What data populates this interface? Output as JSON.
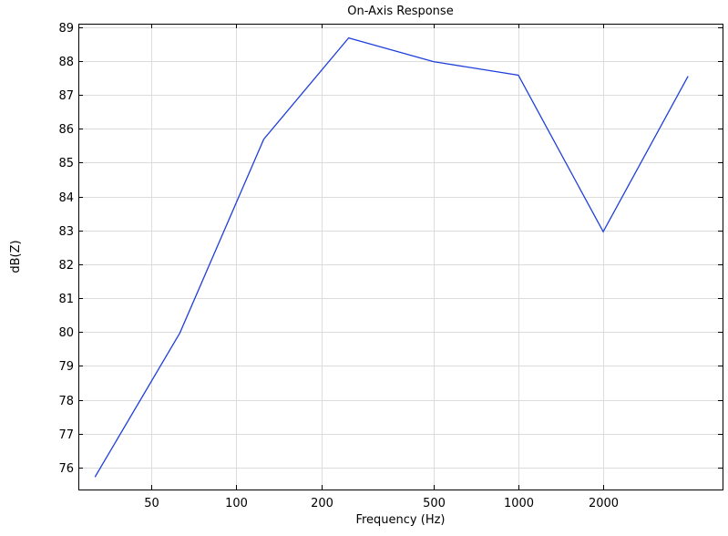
{
  "chart_data": {
    "type": "line",
    "title": "On-Axis Response",
    "xlabel": "Frequency (Hz)",
    "ylabel": "dB(Z)",
    "x_scale": "log",
    "xlim": [
      27.5,
      5300
    ],
    "ylim": [
      75.35,
      89.1
    ],
    "x_ticks": [
      50,
      100,
      200,
      500,
      1000,
      2000
    ],
    "y_ticks": [
      76,
      77,
      78,
      79,
      80,
      81,
      82,
      83,
      84,
      85,
      86,
      87,
      88,
      89
    ],
    "grid": true,
    "series": [
      {
        "color": "#1f3fdc",
        "x": [
          31.5,
          63,
          125,
          250,
          500,
          1000,
          2000,
          4000
        ],
        "y": [
          75.72,
          79.97,
          85.69,
          88.68,
          87.98,
          87.58,
          82.96,
          87.55
        ]
      }
    ]
  }
}
